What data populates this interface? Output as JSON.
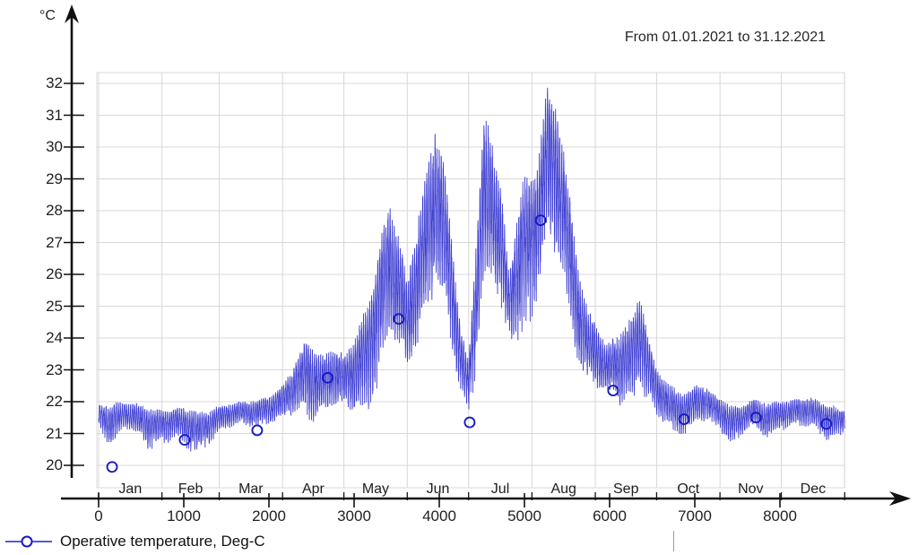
{
  "header": {
    "period_label": "From 01.01.2021 to 31.12.2021"
  },
  "y_axis": {
    "unit_label": "°C",
    "ticks": [
      20,
      21,
      22,
      23,
      24,
      25,
      26,
      27,
      28,
      29,
      30,
      31,
      32
    ]
  },
  "x_axis": {
    "hour_ticks": [
      0,
      1000,
      2000,
      3000,
      4000,
      5000,
      6000,
      7000,
      8000
    ],
    "month_labels": [
      "Jan",
      "Feb",
      "Mar",
      "Apr",
      "May",
      "Jun",
      "Jul",
      "Aug",
      "Sep",
      "Oct",
      "Nov",
      "Dec"
    ],
    "month_boundaries_hours": [
      0,
      744,
      1416,
      2160,
      2880,
      3624,
      4344,
      5088,
      5832,
      6552,
      7296,
      8016,
      8760
    ],
    "total_hours": 8760
  },
  "legend": {
    "series_label": "Operative temperature, Deg-C",
    "marker_shape": "open-circle"
  },
  "colors": {
    "series": "#2222cc",
    "marker": "#1a1ac4",
    "grid": "#d8d8d8",
    "axis": "#111111",
    "text": "#1f1f1f"
  },
  "chart_data": {
    "type": "line",
    "title": "From 01.01.2021 to 31.12.2021",
    "ylabel": "°C",
    "xlabel": "",
    "x_range_hours": [
      0,
      8760
    ],
    "y_ticks": [
      20,
      21,
      22,
      23,
      24,
      25,
      26,
      27,
      28,
      29,
      30,
      31,
      32
    ],
    "grid": "on",
    "legend_position": "bottom-left",
    "series": [
      {
        "name": "Operative temperature, Deg-C",
        "color": "#2222cc",
        "sampling": "hourly values for 2021; noisy band reconstructed from min/max envelope",
        "envelope_hour_min_max": [
          [
            0,
            21.0,
            22.0
          ],
          [
            150,
            20.0,
            22.0
          ],
          [
            300,
            20.8,
            22.0
          ],
          [
            600,
            20.4,
            22.0
          ],
          [
            744,
            20.6,
            21.9
          ],
          [
            900,
            20.6,
            21.9
          ],
          [
            1050,
            20.2,
            21.9
          ],
          [
            1150,
            20.1,
            21.9
          ],
          [
            1300,
            20.7,
            21.9
          ],
          [
            1416,
            20.9,
            22.0
          ],
          [
            1600,
            21.0,
            22.0
          ],
          [
            1850,
            20.9,
            22.1
          ],
          [
            2050,
            21.0,
            22.3
          ],
          [
            2160,
            21.0,
            22.5
          ],
          [
            2300,
            21.1,
            23.3
          ],
          [
            2450,
            21.2,
            24.4
          ],
          [
            2600,
            21.1,
            23.7
          ],
          [
            2750,
            21.2,
            23.9
          ],
          [
            2880,
            21.2,
            23.6
          ],
          [
            3000,
            21.3,
            24.4
          ],
          [
            3150,
            21.6,
            25.6
          ],
          [
            3300,
            22.2,
            27.5
          ],
          [
            3420,
            22.6,
            28.5
          ],
          [
            3550,
            22.0,
            27.0
          ],
          [
            3624,
            21.8,
            25.9
          ],
          [
            3700,
            22.2,
            27.3
          ],
          [
            3800,
            23.0,
            28.8
          ],
          [
            3950,
            23.6,
            30.9
          ],
          [
            4050,
            23.2,
            29.6
          ],
          [
            4150,
            22.4,
            27.3
          ],
          [
            4250,
            21.6,
            24.6
          ],
          [
            4344,
            21.3,
            23.5
          ],
          [
            4420,
            22.0,
            27.0
          ],
          [
            4520,
            24.3,
            31.4
          ],
          [
            4620,
            24.5,
            30.6
          ],
          [
            4720,
            24.0,
            29.2
          ],
          [
            4820,
            23.4,
            26.3
          ],
          [
            4900,
            23.8,
            28.3
          ],
          [
            4990,
            24.3,
            30.1
          ],
          [
            5088,
            24.0,
            29.7
          ],
          [
            5180,
            24.6,
            30.6
          ],
          [
            5270,
            25.2,
            32.1
          ],
          [
            5360,
            24.8,
            31.7
          ],
          [
            5470,
            24.0,
            30.0
          ],
          [
            5560,
            23.0,
            28.2
          ],
          [
            5650,
            22.2,
            26.2
          ],
          [
            5750,
            21.8,
            24.9
          ],
          [
            5832,
            21.6,
            24.7
          ],
          [
            5950,
            21.5,
            23.8
          ],
          [
            6100,
            21.4,
            24.3
          ],
          [
            6250,
            21.4,
            24.9
          ],
          [
            6360,
            21.5,
            25.8
          ],
          [
            6450,
            21.3,
            24.2
          ],
          [
            6552,
            21.2,
            23.2
          ],
          [
            6700,
            21.0,
            22.8
          ],
          [
            6900,
            21.0,
            22.5
          ],
          [
            7050,
            21.1,
            22.7
          ],
          [
            7200,
            20.9,
            22.3
          ],
          [
            7296,
            20.8,
            22.2
          ],
          [
            7420,
            20.3,
            22.0
          ],
          [
            7550,
            20.7,
            22.0
          ],
          [
            7700,
            20.9,
            22.1
          ],
          [
            7840,
            20.3,
            22.0
          ],
          [
            8016,
            20.9,
            22.1
          ],
          [
            8200,
            21.0,
            22.2
          ],
          [
            8400,
            20.9,
            22.2
          ],
          [
            8600,
            20.7,
            22.1
          ],
          [
            8760,
            21.0,
            21.9
          ]
        ],
        "marker_points_hour_degC": [
          [
            158,
            19.95
          ],
          [
            1010,
            20.8
          ],
          [
            1862,
            21.1
          ],
          [
            2690,
            22.75
          ],
          [
            3524,
            24.6
          ],
          [
            4357,
            21.35
          ],
          [
            5190,
            27.7
          ],
          [
            6041,
            22.35
          ],
          [
            6875,
            21.45
          ],
          [
            7719,
            21.5
          ],
          [
            8545,
            21.3
          ]
        ],
        "annual_peak_degC": 32.1,
        "annual_min_degC": 19.95
      }
    ]
  }
}
